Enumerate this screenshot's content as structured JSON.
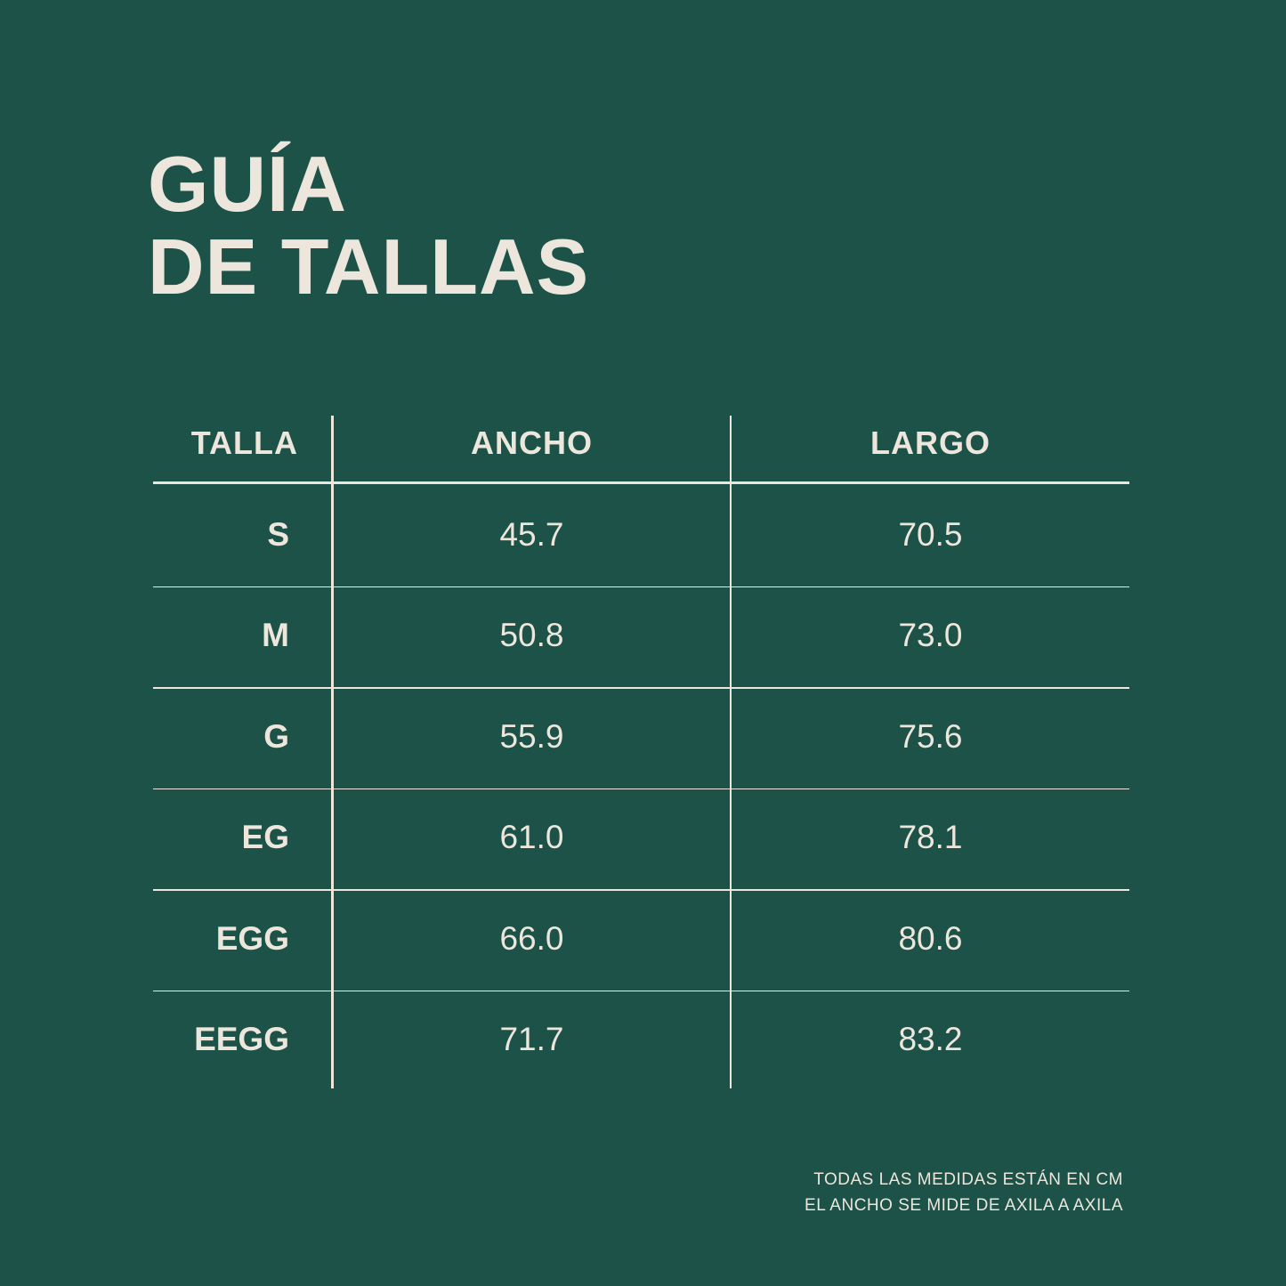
{
  "title": {
    "line1": "GUÍA",
    "line2": "DE TALLAS"
  },
  "table": {
    "headers": [
      "TALLA",
      "ANCHO",
      "LARGO"
    ],
    "rows": [
      [
        "S",
        "45.7",
        "70.5"
      ],
      [
        "M",
        "50.8",
        "73.0"
      ],
      [
        "G",
        "55.9",
        "75.6"
      ],
      [
        "EG",
        "61.0",
        "78.1"
      ],
      [
        "EGG",
        "66.0",
        "80.6"
      ],
      [
        "EEGG",
        "71.7",
        "83.2"
      ]
    ]
  },
  "footer": {
    "line1": "TODAS LAS MEDIDAS ESTÁN EN CM",
    "line2": "EL ANCHO SE MIDE DE AXILA A AXILA"
  },
  "colors": {
    "background": "#1c5247",
    "text": "#ece6dc"
  }
}
